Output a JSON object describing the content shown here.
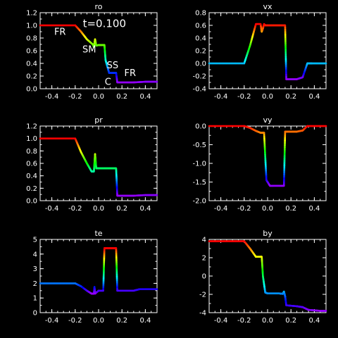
{
  "chart_data": [
    {
      "type": "line",
      "title": "ro",
      "xlim": [
        -0.5,
        0.5
      ],
      "ylim": [
        0.0,
        1.2
      ],
      "x_ticks": [
        -0.4,
        -0.2,
        0.0,
        0.2,
        0.4
      ],
      "x_tick_labels": [
        "-0.4",
        "-0.2",
        "0.0",
        "0.2",
        "0.4"
      ],
      "y_ticks": [
        0.0,
        0.2,
        0.4,
        0.6,
        0.8,
        1.0,
        1.2
      ],
      "y_tick_labels": [
        "0.0",
        "0.2",
        "0.4",
        "0.6",
        "0.8",
        "1.0",
        "1.2"
      ],
      "x": [
        -0.5,
        -0.2,
        -0.15,
        -0.1,
        -0.05,
        -0.04,
        -0.03,
        -0.02,
        0.0,
        0.02,
        0.05,
        0.06,
        0.09,
        0.1,
        0.12,
        0.13,
        0.15,
        0.16,
        0.3,
        0.4,
        0.5
      ],
      "y": [
        1.0,
        1.0,
        0.9,
        0.78,
        0.7,
        0.66,
        0.78,
        0.68,
        0.69,
        0.69,
        0.69,
        0.45,
        0.25,
        0.25,
        0.25,
        0.25,
        0.25,
        0.1,
        0.1,
        0.11,
        0.11
      ],
      "annotations": [
        {
          "text": "t=0.100",
          "x": 0.05,
          "y": 0.97
        },
        {
          "text": "FR",
          "x": -0.33,
          "y": 0.85
        },
        {
          "text": "SM",
          "x": -0.08,
          "y": 0.57
        },
        {
          "text": "SS",
          "x": 0.12,
          "y": 0.32
        },
        {
          "text": "FR",
          "x": 0.27,
          "y": 0.2
        },
        {
          "text": "C",
          "x": 0.08,
          "y": 0.06
        }
      ]
    },
    {
      "type": "line",
      "title": "vx",
      "xlim": [
        -0.5,
        0.5
      ],
      "ylim": [
        -0.4,
        0.8
      ],
      "x_ticks": [
        -0.4,
        -0.2,
        0.0,
        0.2,
        0.4
      ],
      "x_tick_labels": [
        "-0.4",
        "-0.2",
        "0.0",
        "0.2",
        "0.4"
      ],
      "y_ticks": [
        -0.4,
        -0.2,
        0.0,
        0.2,
        0.4,
        0.6,
        0.8
      ],
      "y_tick_labels": [
        "-0.4",
        "-0.2",
        "0.0",
        "0.2",
        "0.4",
        "0.6",
        "0.8"
      ],
      "x": [
        -0.5,
        -0.2,
        -0.15,
        -0.1,
        -0.06,
        -0.05,
        -0.04,
        -0.03,
        -0.02,
        0.0,
        0.05,
        0.1,
        0.15,
        0.16,
        0.25,
        0.3,
        0.34,
        0.38,
        0.5
      ],
      "y": [
        0.0,
        0.0,
        0.28,
        0.62,
        0.62,
        0.5,
        0.55,
        0.62,
        0.6,
        0.6,
        0.6,
        0.6,
        0.6,
        -0.25,
        -0.25,
        -0.22,
        0.0,
        0.0,
        0.0
      ]
    },
    {
      "type": "line",
      "title": "pr",
      "xlim": [
        -0.5,
        0.5
      ],
      "ylim": [
        0.0,
        1.2
      ],
      "x_ticks": [
        -0.4,
        -0.2,
        0.0,
        0.2,
        0.4
      ],
      "x_tick_labels": [
        "-0.4",
        "-0.2",
        "0.0",
        "0.2",
        "0.4"
      ],
      "y_ticks": [
        0.0,
        0.2,
        0.4,
        0.6,
        0.8,
        1.0,
        1.2
      ],
      "y_tick_labels": [
        "0.0",
        "0.2",
        "0.4",
        "0.6",
        "0.8",
        "1.0",
        "1.2"
      ],
      "x": [
        -0.5,
        -0.2,
        -0.15,
        -0.1,
        -0.06,
        -0.04,
        -0.03,
        -0.02,
        0.0,
        0.05,
        0.1,
        0.15,
        0.16,
        0.3,
        0.4,
        0.5
      ],
      "y": [
        1.0,
        1.0,
        0.78,
        0.6,
        0.47,
        0.47,
        0.75,
        0.52,
        0.52,
        0.52,
        0.52,
        0.52,
        0.08,
        0.08,
        0.09,
        0.09
      ]
    },
    {
      "type": "line",
      "title": "vy",
      "xlim": [
        -0.5,
        0.5
      ],
      "ylim": [
        -2.0,
        0.0
      ],
      "x_ticks": [
        -0.4,
        -0.2,
        0.0,
        0.2,
        0.4
      ],
      "x_tick_labels": [
        "-0.4",
        "-0.2",
        "0.0",
        "0.2",
        "0.4"
      ],
      "y_ticks": [
        -2.0,
        -1.5,
        -1.0,
        -0.5,
        0.0
      ],
      "y_tick_labels": [
        "-2.0",
        "-1.5",
        "-1.0",
        "-0.5",
        "0.0"
      ],
      "x": [
        -0.5,
        -0.2,
        -0.15,
        -0.1,
        -0.06,
        -0.04,
        -0.03,
        -0.01,
        0.02,
        0.05,
        0.1,
        0.14,
        0.15,
        0.25,
        0.3,
        0.34,
        0.5
      ],
      "y": [
        0.0,
        0.0,
        -0.05,
        -0.13,
        -0.18,
        -0.18,
        -0.18,
        -1.45,
        -1.6,
        -1.6,
        -1.6,
        -1.6,
        -0.15,
        -0.15,
        -0.12,
        0.0,
        0.0
      ]
    },
    {
      "type": "line",
      "title": "te",
      "xlim": [
        -0.5,
        0.5
      ],
      "ylim": [
        0,
        5
      ],
      "x_ticks": [
        -0.4,
        -0.2,
        0.0,
        0.2,
        0.4
      ],
      "x_tick_labels": [
        "-0.4",
        "-0.2",
        "0.0",
        "0.2",
        "0.4"
      ],
      "y_ticks": [
        0,
        1,
        2,
        3,
        4,
        5
      ],
      "y_tick_labels": [
        "0",
        "1",
        "2",
        "3",
        "4",
        "5"
      ],
      "x": [
        -0.5,
        -0.2,
        -0.15,
        -0.1,
        -0.06,
        -0.04,
        -0.035,
        -0.03,
        0.0,
        0.04,
        0.05,
        0.06,
        0.1,
        0.14,
        0.15,
        0.16,
        0.3,
        0.35,
        0.5
      ],
      "y": [
        2.0,
        2.0,
        1.8,
        1.5,
        1.3,
        1.3,
        1.75,
        1.3,
        1.5,
        1.5,
        4.4,
        4.4,
        4.4,
        4.4,
        4.4,
        1.5,
        1.5,
        1.6,
        1.6
      ]
    },
    {
      "type": "line",
      "title": "by",
      "xlim": [
        -0.5,
        0.5
      ],
      "ylim": [
        -4,
        4
      ],
      "x_ticks": [
        -0.4,
        -0.2,
        0.0,
        0.2,
        0.4
      ],
      "x_tick_labels": [
        "-0.4",
        "-0.2",
        "0.0",
        "0.2",
        "0.4"
      ],
      "y_ticks": [
        -4,
        -2,
        0,
        2,
        4
      ],
      "y_tick_labels": [
        "-4",
        "-2",
        "0",
        "2",
        "4"
      ],
      "x": [
        -0.5,
        -0.2,
        -0.15,
        -0.1,
        -0.06,
        -0.05,
        -0.04,
        -0.02,
        0.0,
        0.1,
        0.13,
        0.14,
        0.15,
        0.16,
        0.25,
        0.3,
        0.35,
        0.45,
        0.5
      ],
      "y": [
        3.8,
        3.8,
        3.0,
        2.1,
        2.1,
        2.1,
        0.0,
        -1.8,
        -1.9,
        -1.9,
        -1.95,
        -1.7,
        -2.2,
        -3.2,
        -3.3,
        -3.4,
        -3.7,
        -3.8,
        -3.8
      ]
    }
  ]
}
